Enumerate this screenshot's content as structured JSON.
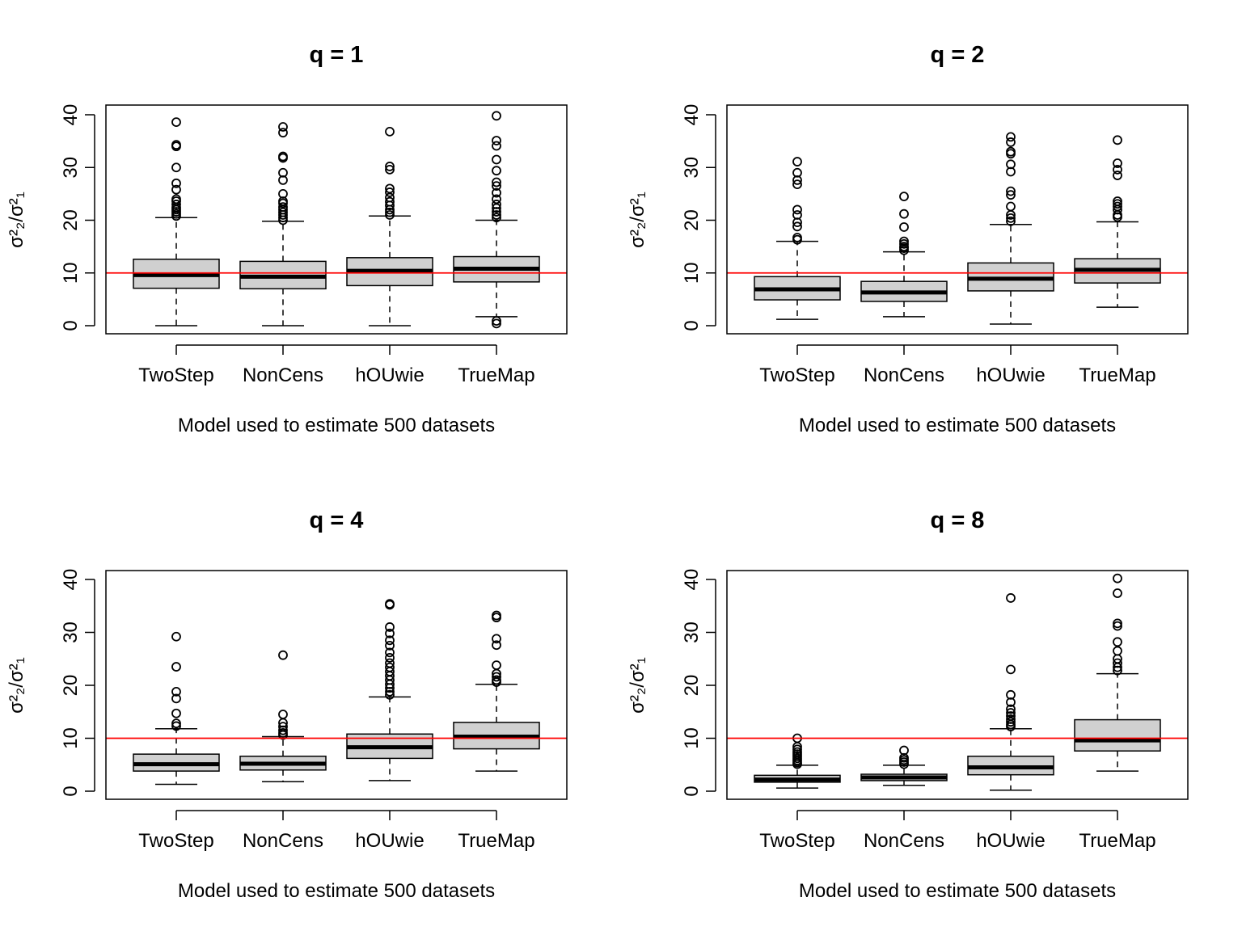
{
  "chart_data": [
    {
      "type": "box",
      "title": "q = 1",
      "xlabel": "Model used to estimate 500 datasets",
      "ylabel": "σ²₂/σ²₁",
      "categories": [
        "TwoStep",
        "NonCens",
        "hOUwie",
        "TrueMap"
      ],
      "ylim": [
        0,
        40
      ],
      "yticks": [
        0,
        10,
        20,
        30,
        40
      ],
      "reference_line": {
        "y": 10,
        "color": "#ff0000"
      },
      "boxes": [
        {
          "name": "TwoStep",
          "whisker_low": 0,
          "q1": 7.1,
          "median": 9.6,
          "q3": 12.6,
          "whisker_high": 20.5,
          "outliers": [
            20.8,
            21.2,
            21.6,
            22.0,
            22.4,
            23.0,
            23.6,
            24.0,
            25.8,
            27.0,
            30.0,
            34.0,
            34.3,
            38.6
          ]
        },
        {
          "name": "NonCens",
          "whisker_low": 0,
          "q1": 7.0,
          "median": 9.3,
          "q3": 12.2,
          "whisker_high": 19.8,
          "outliers": [
            20.0,
            20.5,
            21.0,
            21.5,
            22.0,
            22.5,
            23.2,
            23.6,
            25.0,
            27.6,
            29.0,
            31.8,
            32.1,
            36.6,
            37.7
          ]
        },
        {
          "name": "hOUwie",
          "whisker_low": 0,
          "q1": 7.6,
          "median": 10.4,
          "q3": 12.9,
          "whisker_high": 20.8,
          "outliers": [
            21.0,
            21.5,
            22.0,
            22.8,
            23.5,
            24.3,
            25.3,
            26.0,
            29.6,
            30.2,
            36.8
          ]
        },
        {
          "name": "TrueMap",
          "whisker_low": 1.7,
          "q1": 8.3,
          "median": 10.8,
          "q3": 13.1,
          "whisker_high": 20.0,
          "outliers": [
            0.4,
            0.9,
            20.5,
            21.0,
            21.6,
            22.3,
            23.0,
            24.0,
            25.2,
            26.5,
            27.2,
            29.4,
            31.5,
            34.1,
            35.1,
            39.8
          ]
        }
      ]
    },
    {
      "type": "box",
      "title": "q = 2",
      "xlabel": "Model used to estimate 500 datasets",
      "ylabel": "σ²₂/σ²₁",
      "categories": [
        "TwoStep",
        "NonCens",
        "hOUwie",
        "TrueMap"
      ],
      "ylim": [
        0,
        40
      ],
      "yticks": [
        0,
        10,
        20,
        30,
        40
      ],
      "reference_line": {
        "y": 10,
        "color": "#ff0000"
      },
      "boxes": [
        {
          "name": "TwoStep",
          "whisker_low": 1.2,
          "q1": 4.9,
          "median": 6.9,
          "q3": 9.3,
          "whisker_high": 16.0,
          "outliers": [
            16.3,
            16.7,
            18.8,
            19.6,
            21.0,
            22.0,
            26.8,
            27.6,
            29.0,
            31.1
          ]
        },
        {
          "name": "NonCens",
          "whisker_low": 1.7,
          "q1": 4.6,
          "median": 6.3,
          "q3": 8.4,
          "whisker_high": 14.0,
          "outliers": [
            14.3,
            14.7,
            15.0,
            15.5,
            16.0,
            18.7,
            21.2,
            24.5
          ]
        },
        {
          "name": "hOUwie",
          "whisker_low": 0.3,
          "q1": 6.6,
          "median": 8.9,
          "q3": 11.9,
          "whisker_high": 19.2,
          "outliers": [
            19.8,
            20.4,
            21.0,
            22.6,
            24.8,
            25.5,
            29.2,
            30.6,
            32.6,
            33.0,
            34.8,
            35.8
          ]
        },
        {
          "name": "TrueMap",
          "whisker_low": 3.5,
          "q1": 8.1,
          "median": 10.6,
          "q3": 12.7,
          "whisker_high": 19.7,
          "outliers": [
            20.6,
            21.0,
            22.0,
            22.6,
            23.1,
            23.6,
            28.5,
            29.6,
            30.8,
            35.2
          ]
        }
      ]
    },
    {
      "type": "box",
      "title": "q = 4",
      "xlabel": "Model used to estimate 500 datasets",
      "ylabel": "σ²₂/σ²₁",
      "categories": [
        "TwoStep",
        "NonCens",
        "hOUwie",
        "TrueMap"
      ],
      "ylim": [
        0,
        40
      ],
      "yticks": [
        0,
        10,
        20,
        30,
        40
      ],
      "reference_line": {
        "y": 10,
        "color": "#ff0000"
      },
      "boxes": [
        {
          "name": "TwoStep",
          "whisker_low": 1.3,
          "q1": 3.8,
          "median": 5.1,
          "q3": 7.0,
          "whisker_high": 11.8,
          "outliers": [
            12.3,
            12.8,
            14.7,
            17.5,
            18.8,
            23.5,
            29.2
          ]
        },
        {
          "name": "NonCens",
          "whisker_low": 1.8,
          "q1": 4.0,
          "median": 5.2,
          "q3": 6.6,
          "whisker_high": 10.3,
          "outliers": [
            10.6,
            11.0,
            11.5,
            12.2,
            12.9,
            14.5,
            25.7
          ]
        },
        {
          "name": "hOUwie",
          "whisker_low": 2.0,
          "q1": 6.2,
          "median": 8.3,
          "q3": 10.8,
          "whisker_high": 17.8,
          "outliers": [
            18.2,
            18.8,
            19.5,
            20.2,
            21.0,
            21.8,
            22.6,
            23.4,
            24.2,
            25.2,
            26.2,
            27.5,
            28.5,
            29.8,
            31.0,
            35.2,
            35.4
          ]
        },
        {
          "name": "TrueMap",
          "whisker_low": 3.8,
          "q1": 8.0,
          "median": 10.3,
          "q3": 13.0,
          "whisker_high": 20.2,
          "outliers": [
            20.6,
            21.0,
            21.6,
            22.2,
            23.8,
            27.6,
            28.8,
            32.8,
            33.2
          ]
        }
      ]
    },
    {
      "type": "box",
      "title": "q = 8",
      "xlabel": "Model used to estimate 500 datasets",
      "ylabel": "σ²₂/σ²₁",
      "categories": [
        "TwoStep",
        "NonCens",
        "hOUwie",
        "TrueMap"
      ],
      "ylim": [
        0,
        40
      ],
      "yticks": [
        0,
        10,
        20,
        30,
        40
      ],
      "reference_line": {
        "y": 10,
        "color": "#ff0000"
      },
      "boxes": [
        {
          "name": "TwoStep",
          "whisker_low": 0.6,
          "q1": 1.7,
          "median": 2.2,
          "q3": 3.0,
          "whisker_high": 4.9,
          "outliers": [
            5.1,
            5.4,
            5.8,
            6.2,
            6.6,
            7.0,
            7.4,
            7.9,
            8.4,
            10.0
          ]
        },
        {
          "name": "NonCens",
          "whisker_low": 1.1,
          "q1": 2.0,
          "median": 2.6,
          "q3": 3.2,
          "whisker_high": 4.9,
          "outliers": [
            5.1,
            5.5,
            5.9,
            6.3,
            7.7
          ]
        },
        {
          "name": "hOUwie",
          "whisker_low": 0.2,
          "q1": 3.1,
          "median": 4.5,
          "q3": 6.6,
          "whisker_high": 11.8,
          "outliers": [
            12.2,
            12.6,
            13.1,
            13.6,
            14.2,
            14.8,
            15.5,
            16.8,
            18.2,
            23.0,
            36.5
          ]
        },
        {
          "name": "TrueMap",
          "whisker_low": 3.8,
          "q1": 7.6,
          "median": 9.6,
          "q3": 13.5,
          "whisker_high": 22.2,
          "outliers": [
            22.8,
            23.4,
            24.2,
            25.0,
            26.5,
            28.2,
            31.2,
            31.7,
            37.4,
            40.2
          ]
        }
      ]
    }
  ]
}
